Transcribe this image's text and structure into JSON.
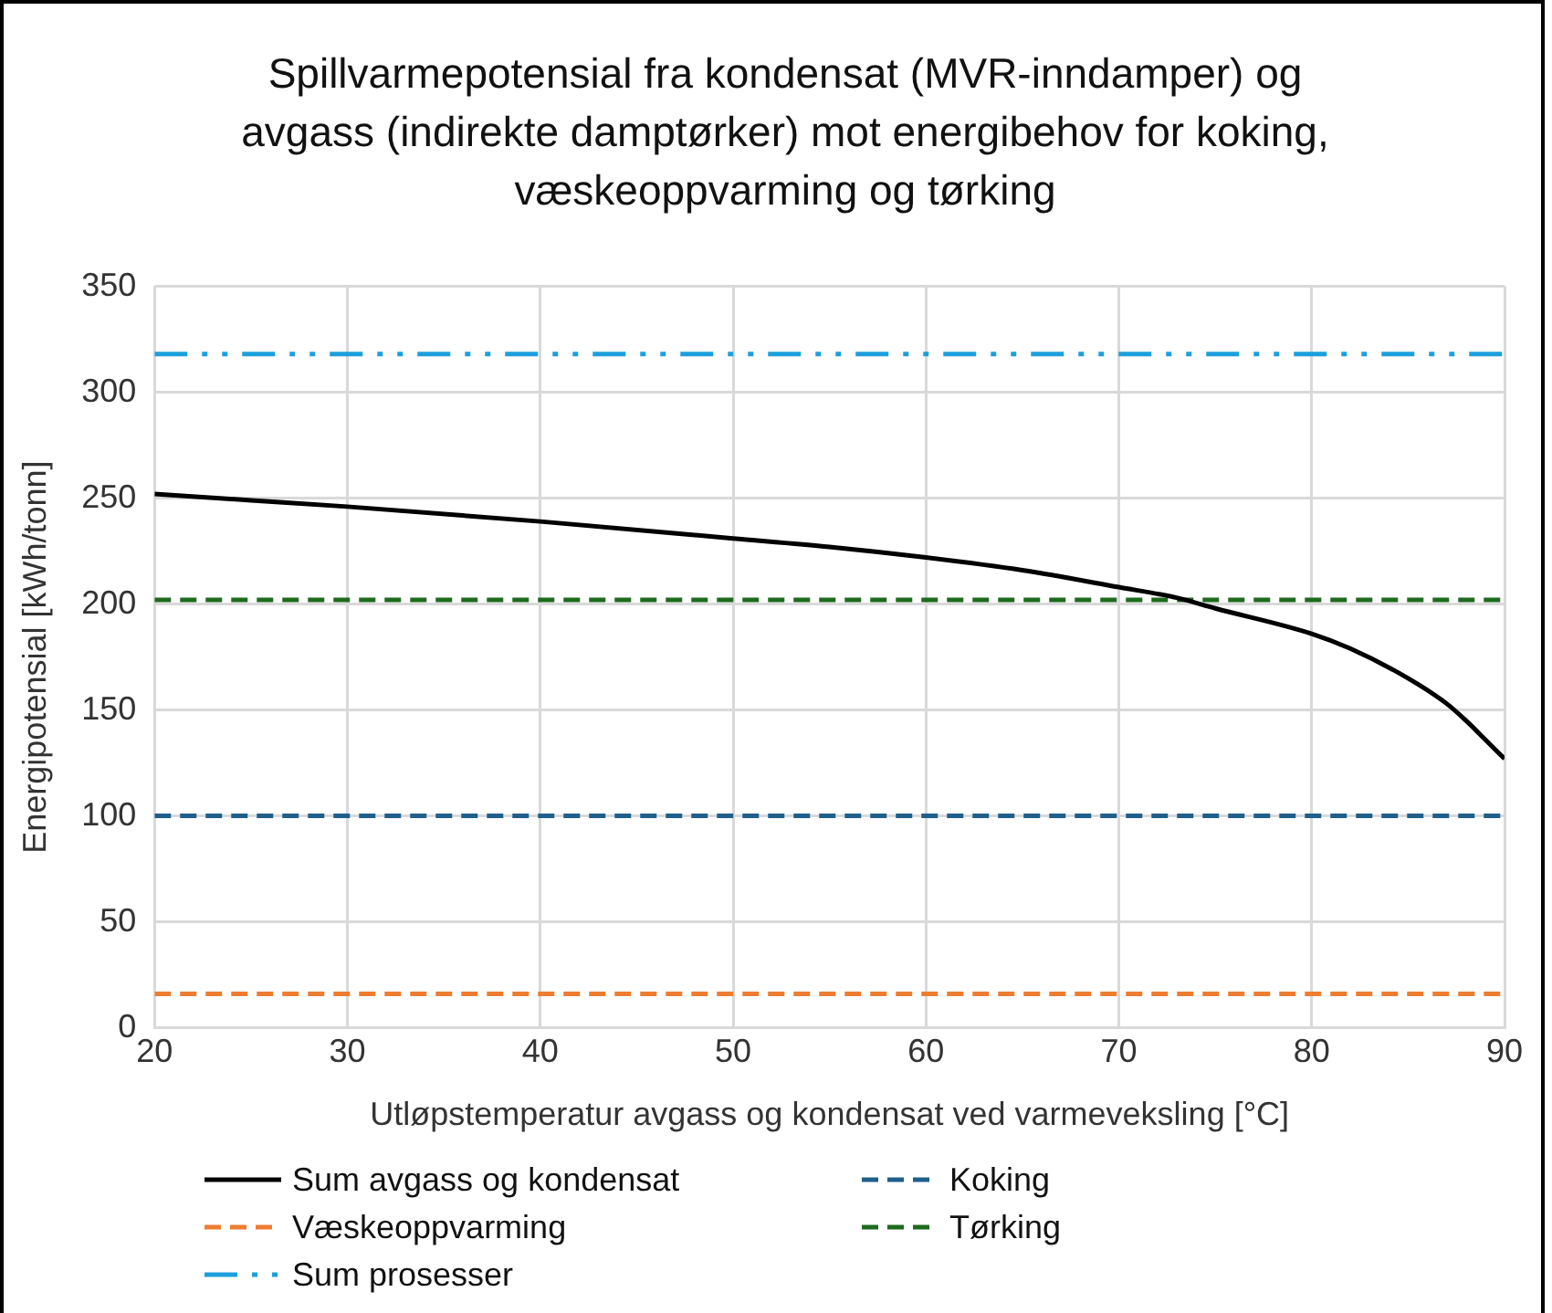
{
  "chart_data": {
    "type": "line",
    "title": "Spillvarmepotensial fra kondensat (MVR-inndamper) og avgass (indirekte damptørker) mot energibehov for koking, væskeoppvarming og tørking",
    "xlabel": "Utløpstemperatur avgass og kondensat ved varmeveksling [°C]",
    "ylabel": "Energipotensial [kWh/tonn]",
    "xlim": [
      20,
      90
    ],
    "xticks": [
      20,
      30,
      40,
      50,
      60,
      70,
      80,
      90
    ],
    "ylim": [
      0,
      350
    ],
    "yticks": [
      0,
      50,
      100,
      150,
      200,
      250,
      300,
      350
    ],
    "grid": true,
    "legend": "bottom",
    "marker": "none",
    "series": [
      {
        "name": "Sum avgass og kondensat",
        "color": "#000000",
        "line_style": "solid",
        "x": [
          20,
          25,
          30,
          40,
          50,
          55,
          60,
          65,
          70,
          73,
          75,
          80,
          82,
          85,
          87,
          88,
          89,
          90
        ],
        "values": [
          252,
          249,
          246,
          239,
          231,
          227,
          222,
          216,
          208,
          203,
          198,
          186,
          179,
          165,
          153,
          145,
          136,
          127
        ]
      },
      {
        "name": "Koking",
        "color": "#1f5f8b",
        "line_style": "dashed",
        "x": [
          20,
          90
        ],
        "values": [
          100,
          100
        ]
      },
      {
        "name": "Væskeoppvarming",
        "color": "#ed7d31",
        "line_style": "dashed",
        "x": [
          20,
          90
        ],
        "values": [
          16,
          16
        ]
      },
      {
        "name": "Tørking",
        "color": "#1e6b1e",
        "line_style": "dashed",
        "x": [
          20,
          90
        ],
        "values": [
          202,
          202
        ]
      },
      {
        "name": "Sum prosesser",
        "color": "#1ca0dc",
        "line_style": "dotted",
        "x": [
          20,
          90
        ],
        "values": [
          318,
          318
        ]
      }
    ]
  }
}
